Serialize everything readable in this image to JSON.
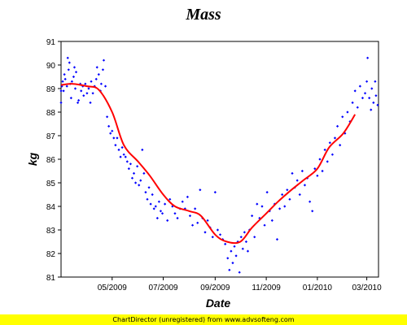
{
  "chart_data": {
    "type": "scatter",
    "title": "Mass",
    "xlabel": "Date",
    "ylabel": "kg",
    "ylim": [
      81,
      91
    ],
    "yticks": [
      81,
      82,
      83,
      84,
      85,
      86,
      87,
      88,
      89,
      90,
      91
    ],
    "xlim": [
      "2009-03-01",
      "2010-03-15"
    ],
    "xticks": [
      {
        "date": "2009-05-01",
        "label": "05/2009"
      },
      {
        "date": "2009-07-01",
        "label": "07/2009"
      },
      {
        "date": "2009-09-01",
        "label": "09/2009"
      },
      {
        "date": "2009-11-01",
        "label": "11/2009"
      },
      {
        "date": "2010-01-01",
        "label": "01/2010"
      },
      {
        "date": "2010-03-01",
        "label": "03/2010"
      }
    ],
    "grid": false,
    "legend": "none",
    "series": [
      {
        "kind": "scatter",
        "color": "#0000ff",
        "points": [
          [
            "2009-03-01",
            88.4
          ],
          [
            "2009-03-01",
            88.9
          ],
          [
            "2009-03-02",
            89.1
          ],
          [
            "2009-03-03",
            89.3
          ],
          [
            "2009-03-04",
            88.9
          ],
          [
            "2009-03-05",
            89.6
          ],
          [
            "2009-03-06",
            89.4
          ],
          [
            "2009-03-08",
            89.1
          ],
          [
            "2009-03-09",
            90.3
          ],
          [
            "2009-03-10",
            89.8
          ],
          [
            "2009-03-11",
            90.1
          ],
          [
            "2009-03-12",
            89.2
          ],
          [
            "2009-03-13",
            88.6
          ],
          [
            "2009-03-14",
            89.3
          ],
          [
            "2009-03-16",
            89.5
          ],
          [
            "2009-03-17",
            89.9
          ],
          [
            "2009-03-18",
            89.0
          ],
          [
            "2009-03-19",
            89.7
          ],
          [
            "2009-03-21",
            88.4
          ],
          [
            "2009-03-22",
            88.5
          ],
          [
            "2009-03-24",
            89.2
          ],
          [
            "2009-03-25",
            88.9
          ],
          [
            "2009-03-27",
            89.1
          ],
          [
            "2009-03-28",
            88.7
          ],
          [
            "2009-03-30",
            89.2
          ],
          [
            "2009-04-01",
            88.8
          ],
          [
            "2009-04-03",
            89.0
          ],
          [
            "2009-04-05",
            88.4
          ],
          [
            "2009-04-06",
            89.3
          ],
          [
            "2009-04-08",
            88.8
          ],
          [
            "2009-04-10",
            89.1
          ],
          [
            "2009-04-12",
            89.4
          ],
          [
            "2009-04-13",
            89.9
          ],
          [
            "2009-04-15",
            89.6
          ],
          [
            "2009-04-17",
            88.9
          ],
          [
            "2009-04-18",
            89.2
          ],
          [
            "2009-04-20",
            89.8
          ],
          [
            "2009-04-21",
            90.2
          ],
          [
            "2009-04-23",
            89.1
          ],
          [
            "2009-04-25",
            87.8
          ],
          [
            "2009-04-27",
            87.4
          ],
          [
            "2009-04-29",
            87.1
          ],
          [
            "2009-05-01",
            87.2
          ],
          [
            "2009-05-03",
            86.9
          ],
          [
            "2009-05-05",
            86.6
          ],
          [
            "2009-05-07",
            86.9
          ],
          [
            "2009-05-09",
            86.4
          ],
          [
            "2009-05-11",
            86.1
          ],
          [
            "2009-05-13",
            86.5
          ],
          [
            "2009-05-15",
            86.2
          ],
          [
            "2009-05-17",
            86.1
          ],
          [
            "2009-05-19",
            85.9
          ],
          [
            "2009-05-21",
            85.6
          ],
          [
            "2009-05-23",
            85.8
          ],
          [
            "2009-05-25",
            85.2
          ],
          [
            "2009-05-27",
            85.4
          ],
          [
            "2009-05-29",
            85.0
          ],
          [
            "2009-05-31",
            85.7
          ],
          [
            "2009-06-02",
            84.9
          ],
          [
            "2009-06-04",
            85.1
          ],
          [
            "2009-06-06",
            86.4
          ],
          [
            "2009-06-08",
            85.4
          ],
          [
            "2009-06-10",
            84.6
          ],
          [
            "2009-06-12",
            84.3
          ],
          [
            "2009-06-14",
            84.8
          ],
          [
            "2009-06-16",
            84.1
          ],
          [
            "2009-06-18",
            84.5
          ],
          [
            "2009-06-20",
            83.9
          ],
          [
            "2009-06-22",
            84.0
          ],
          [
            "2009-06-24",
            83.5
          ],
          [
            "2009-06-26",
            84.2
          ],
          [
            "2009-06-28",
            83.8
          ],
          [
            "2009-06-30",
            83.7
          ],
          [
            "2009-07-03",
            84.1
          ],
          [
            "2009-07-06",
            83.4
          ],
          [
            "2009-07-09",
            84.3
          ],
          [
            "2009-07-12",
            84.0
          ],
          [
            "2009-07-15",
            83.7
          ],
          [
            "2009-07-18",
            83.5
          ],
          [
            "2009-07-21",
            83.9
          ],
          [
            "2009-07-24",
            84.2
          ],
          [
            "2009-07-27",
            83.9
          ],
          [
            "2009-07-30",
            84.4
          ],
          [
            "2009-08-02",
            83.6
          ],
          [
            "2009-08-05",
            83.2
          ],
          [
            "2009-08-08",
            83.9
          ],
          [
            "2009-08-11",
            83.3
          ],
          [
            "2009-08-14",
            84.7
          ],
          [
            "2009-08-17",
            83.5
          ],
          [
            "2009-08-20",
            82.9
          ],
          [
            "2009-08-23",
            83.4
          ],
          [
            "2009-08-26",
            83.1
          ],
          [
            "2009-08-29",
            82.7
          ],
          [
            "2009-09-01",
            84.6
          ],
          [
            "2009-09-04",
            83.0
          ],
          [
            "2009-09-07",
            82.8
          ],
          [
            "2009-09-10",
            82.6
          ],
          [
            "2009-09-13",
            82.4
          ],
          [
            "2009-09-16",
            81.8
          ],
          [
            "2009-09-18",
            81.3
          ],
          [
            "2009-09-20",
            82.1
          ],
          [
            "2009-09-22",
            81.6
          ],
          [
            "2009-09-24",
            82.3
          ],
          [
            "2009-09-26",
            81.9
          ],
          [
            "2009-09-28",
            82.5
          ],
          [
            "2009-09-30",
            81.2
          ],
          [
            "2009-10-02",
            82.7
          ],
          [
            "2009-10-04",
            82.2
          ],
          [
            "2009-10-06",
            82.9
          ],
          [
            "2009-10-08",
            82.5
          ],
          [
            "2009-10-10",
            82.1
          ],
          [
            "2009-10-12",
            83.0
          ],
          [
            "2009-10-15",
            83.6
          ],
          [
            "2009-10-18",
            82.7
          ],
          [
            "2009-10-21",
            84.1
          ],
          [
            "2009-10-24",
            83.5
          ],
          [
            "2009-10-27",
            84.0
          ],
          [
            "2009-10-30",
            83.2
          ],
          [
            "2009-11-02",
            84.6
          ],
          [
            "2009-11-05",
            83.8
          ],
          [
            "2009-11-08",
            83.4
          ],
          [
            "2009-11-11",
            84.1
          ],
          [
            "2009-11-14",
            82.6
          ],
          [
            "2009-11-17",
            83.9
          ],
          [
            "2009-11-20",
            84.5
          ],
          [
            "2009-11-23",
            84.0
          ],
          [
            "2009-11-26",
            84.7
          ],
          [
            "2009-11-29",
            84.3
          ],
          [
            "2009-12-02",
            85.4
          ],
          [
            "2009-12-05",
            84.8
          ],
          [
            "2009-12-08",
            85.1
          ],
          [
            "2009-12-11",
            84.5
          ],
          [
            "2009-12-14",
            85.5
          ],
          [
            "2009-12-17",
            84.9
          ],
          [
            "2009-12-20",
            85.2
          ],
          [
            "2009-12-23",
            84.2
          ],
          [
            "2009-12-26",
            83.8
          ],
          [
            "2009-12-29",
            85.6
          ],
          [
            "2010-01-01",
            85.3
          ],
          [
            "2010-01-04",
            86.0
          ],
          [
            "2010-01-07",
            85.5
          ],
          [
            "2010-01-10",
            86.4
          ],
          [
            "2010-01-13",
            85.9
          ],
          [
            "2010-01-16",
            86.7
          ],
          [
            "2010-01-19",
            86.2
          ],
          [
            "2010-01-22",
            86.9
          ],
          [
            "2010-01-25",
            87.4
          ],
          [
            "2010-01-28",
            86.6
          ],
          [
            "2010-01-31",
            87.8
          ],
          [
            "2010-02-03",
            87.1
          ],
          [
            "2010-02-06",
            88.0
          ],
          [
            "2010-02-09",
            87.6
          ],
          [
            "2010-02-12",
            88.4
          ],
          [
            "2010-02-15",
            88.9
          ],
          [
            "2010-02-18",
            88.2
          ],
          [
            "2010-02-21",
            89.1
          ],
          [
            "2010-02-24",
            88.6
          ],
          [
            "2010-02-27",
            88.8
          ],
          [
            "2010-03-01",
            89.3
          ],
          [
            "2010-03-02",
            90.3
          ],
          [
            "2010-03-04",
            88.6
          ],
          [
            "2010-03-06",
            88.1
          ],
          [
            "2010-03-07",
            89.0
          ],
          [
            "2010-03-09",
            88.4
          ],
          [
            "2010-03-11",
            89.3
          ],
          [
            "2010-03-12",
            88.7
          ],
          [
            "2010-03-14",
            88.3
          ]
        ]
      },
      {
        "kind": "line",
        "color": "#ff0000",
        "points": [
          [
            "2009-03-01",
            89.15
          ],
          [
            "2009-03-15",
            89.2
          ],
          [
            "2009-04-01",
            89.1
          ],
          [
            "2009-04-15",
            88.95
          ],
          [
            "2009-05-01",
            88.0
          ],
          [
            "2009-05-15",
            86.6
          ],
          [
            "2009-06-01",
            85.9
          ],
          [
            "2009-06-15",
            85.3
          ],
          [
            "2009-07-01",
            84.5
          ],
          [
            "2009-07-15",
            84.0
          ],
          [
            "2009-08-01",
            83.8
          ],
          [
            "2009-08-15",
            83.6
          ],
          [
            "2009-09-01",
            82.8
          ],
          [
            "2009-09-15",
            82.5
          ],
          [
            "2009-10-01",
            82.5
          ],
          [
            "2009-10-15",
            83.1
          ],
          [
            "2009-11-01",
            83.7
          ],
          [
            "2009-11-15",
            84.2
          ],
          [
            "2009-12-01",
            84.7
          ],
          [
            "2009-12-15",
            85.1
          ],
          [
            "2010-01-01",
            85.6
          ],
          [
            "2010-01-15",
            86.5
          ],
          [
            "2010-02-01",
            87.1
          ],
          [
            "2010-02-15",
            87.9
          ]
        ]
      }
    ]
  },
  "footer_text": "ChartDirector (unregistered) from www.advsofteng.com"
}
